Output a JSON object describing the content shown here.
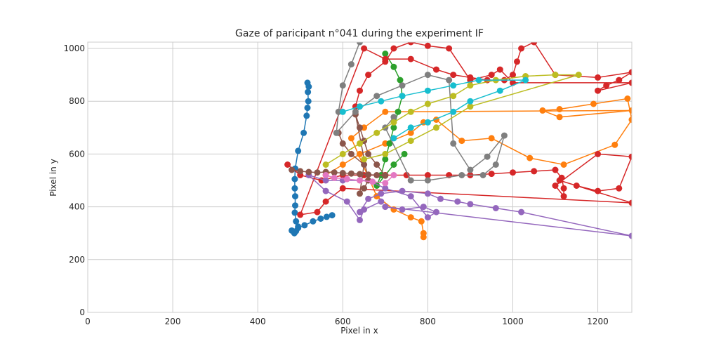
{
  "chart_data": {
    "type": "scatter",
    "title": "Gaze of paricipant n°041 during the experiment IF",
    "xlabel": "Pixel in x",
    "ylabel": "Pixel in y",
    "xlim": [
      0,
      1280
    ],
    "ylim": [
      0,
      1024
    ],
    "xticks": [
      "0",
      "200",
      "400",
      "600",
      "800",
      "1000",
      "1200"
    ],
    "yticks": [
      "0",
      "200",
      "400",
      "600",
      "800",
      "1000"
    ],
    "grid": true,
    "connected": true,
    "series": [
      {
        "color": "#1f77b4",
        "points": [
          [
            517,
            870
          ],
          [
            520,
            855
          ],
          [
            518,
            835
          ],
          [
            519,
            800
          ],
          [
            517,
            775
          ],
          [
            515,
            745
          ],
          [
            508,
            680
          ],
          [
            495,
            612
          ],
          [
            488,
            545
          ],
          [
            487,
            505
          ],
          [
            487,
            470
          ],
          [
            488,
            440
          ],
          [
            488,
            405
          ],
          [
            487,
            378
          ],
          [
            490,
            345
          ],
          [
            495,
            325
          ],
          [
            490,
            308
          ],
          [
            486,
            300
          ],
          [
            480,
            310
          ],
          [
            495,
            320
          ],
          [
            510,
            330
          ],
          [
            530,
            345
          ],
          [
            548,
            355
          ],
          [
            562,
            362
          ],
          [
            575,
            368
          ]
        ]
      },
      {
        "color": "#ff7f0e",
        "points": [
          [
            560,
            520
          ],
          [
            600,
            560
          ],
          [
            640,
            600
          ],
          [
            700,
            640
          ],
          [
            760,
            680
          ],
          [
            790,
            720
          ],
          [
            820,
            730
          ],
          [
            880,
            650
          ],
          [
            950,
            660
          ],
          [
            1040,
            585
          ],
          [
            1120,
            560
          ],
          [
            1240,
            635
          ],
          [
            1280,
            730
          ],
          [
            1270,
            810
          ],
          [
            1190,
            790
          ],
          [
            1110,
            770
          ],
          [
            1070,
            765
          ],
          [
            1110,
            740
          ],
          [
            1280,
            765
          ],
          [
            700,
            760
          ],
          [
            650,
            700
          ],
          [
            620,
            660
          ],
          [
            680,
            440
          ],
          [
            720,
            390
          ],
          [
            760,
            360
          ],
          [
            785,
            345
          ],
          [
            790,
            300
          ],
          [
            790,
            285
          ]
        ]
      },
      {
        "color": "#2ca02c",
        "points": [
          [
            700,
            980
          ],
          [
            720,
            930
          ],
          [
            735,
            880
          ],
          [
            740,
            820
          ],
          [
            730,
            760
          ],
          [
            720,
            700
          ],
          [
            710,
            640
          ],
          [
            700,
            580
          ],
          [
            690,
            520
          ],
          [
            680,
            480
          ],
          [
            700,
            520
          ],
          [
            720,
            560
          ],
          [
            745,
            600
          ]
        ]
      },
      {
        "color": "#d62728",
        "points": [
          [
            470,
            560
          ],
          [
            500,
            520
          ],
          [
            550,
            500
          ],
          [
            600,
            520
          ],
          [
            650,
            520
          ],
          [
            700,
            520
          ],
          [
            750,
            520
          ],
          [
            800,
            520
          ],
          [
            850,
            520
          ],
          [
            900,
            520
          ],
          [
            950,
            525
          ],
          [
            1000,
            530
          ],
          [
            1050,
            535
          ],
          [
            1100,
            540
          ],
          [
            1115,
            510
          ],
          [
            1120,
            470
          ],
          [
            1120,
            440
          ],
          [
            1100,
            480
          ],
          [
            1200,
            600
          ],
          [
            1280,
            590
          ],
          [
            1250,
            470
          ],
          [
            1200,
            460
          ],
          [
            1150,
            480
          ],
          [
            1110,
            500
          ],
          [
            1280,
            415
          ],
          [
            600,
            470
          ],
          [
            560,
            420
          ],
          [
            540,
            380
          ],
          [
            500,
            370
          ],
          [
            650,
            1000
          ],
          [
            700,
            960
          ],
          [
            760,
            960
          ],
          [
            820,
            920
          ],
          [
            860,
            900
          ],
          [
            900,
            890
          ],
          [
            940,
            880
          ],
          [
            980,
            880
          ],
          [
            1000,
            900
          ],
          [
            1010,
            950
          ],
          [
            1020,
            1000
          ],
          [
            1050,
            1024
          ],
          [
            1100,
            900
          ],
          [
            1200,
            890
          ],
          [
            1280,
            910
          ],
          [
            1250,
            880
          ],
          [
            1220,
            860
          ],
          [
            1200,
            840
          ],
          [
            1280,
            870
          ],
          [
            1000,
            870
          ],
          [
            970,
            920
          ],
          [
            950,
            900
          ],
          [
            900,
            880
          ],
          [
            850,
            1000
          ],
          [
            800,
            1010
          ],
          [
            760,
            1024
          ],
          [
            720,
            1000
          ],
          [
            700,
            950
          ],
          [
            660,
            900
          ],
          [
            640,
            840
          ],
          [
            630,
            780
          ]
        ]
      },
      {
        "color": "#9467bd",
        "points": [
          [
            640,
            380
          ],
          [
            660,
            430
          ],
          [
            690,
            450
          ],
          [
            740,
            460
          ],
          [
            800,
            450
          ],
          [
            830,
            430
          ],
          [
            870,
            420
          ],
          [
            900,
            410
          ],
          [
            960,
            395
          ],
          [
            1020,
            380
          ],
          [
            1280,
            290
          ],
          [
            700,
            400
          ],
          [
            740,
            390
          ],
          [
            790,
            400
          ],
          [
            820,
            380
          ],
          [
            800,
            360
          ],
          [
            760,
            440
          ],
          [
            700,
            470
          ],
          [
            660,
            500
          ],
          [
            600,
            500
          ],
          [
            560,
            500
          ],
          [
            520,
            520
          ],
          [
            560,
            460
          ],
          [
            610,
            420
          ],
          [
            640,
            350
          ],
          [
            650,
            390
          ],
          [
            690,
            420
          ]
        ]
      },
      {
        "color": "#8c564b",
        "points": [
          [
            480,
            540
          ],
          [
            500,
            535
          ],
          [
            520,
            532
          ],
          [
            540,
            530
          ],
          [
            560,
            532
          ],
          [
            580,
            530
          ],
          [
            600,
            528
          ],
          [
            620,
            526
          ],
          [
            640,
            524
          ],
          [
            660,
            522
          ],
          [
            680,
            520
          ],
          [
            700,
            518
          ],
          [
            680,
            560
          ],
          [
            660,
            600
          ],
          [
            650,
            650
          ],
          [
            640,
            700
          ],
          [
            630,
            750
          ],
          [
            660,
            500
          ],
          [
            650,
            470
          ],
          [
            640,
            450
          ],
          [
            650,
            560
          ],
          [
            620,
            600
          ],
          [
            600,
            640
          ],
          [
            590,
            680
          ]
        ]
      },
      {
        "color": "#e377c2",
        "points": [
          [
            560,
            520
          ],
          [
            580,
            510
          ],
          [
            610,
            505
          ],
          [
            640,
            500
          ],
          [
            670,
            495
          ],
          [
            700,
            490
          ],
          [
            720,
            520
          ]
        ]
      },
      {
        "color": "#7f7f7f",
        "points": [
          [
            640,
            1024
          ],
          [
            620,
            940
          ],
          [
            600,
            860
          ],
          [
            590,
            760
          ],
          [
            585,
            680
          ],
          [
            630,
            760
          ],
          [
            680,
            820
          ],
          [
            740,
            860
          ],
          [
            800,
            900
          ],
          [
            850,
            880
          ],
          [
            860,
            640
          ],
          [
            900,
            540
          ],
          [
            940,
            590
          ],
          [
            980,
            670
          ],
          [
            960,
            560
          ],
          [
            930,
            520
          ],
          [
            880,
            520
          ],
          [
            800,
            500
          ],
          [
            760,
            500
          ],
          [
            700,
            700
          ],
          [
            720,
            740
          ]
        ]
      },
      {
        "color": "#bcbd22",
        "points": [
          [
            560,
            560
          ],
          [
            600,
            600
          ],
          [
            640,
            640
          ],
          [
            680,
            680
          ],
          [
            720,
            720
          ],
          [
            760,
            760
          ],
          [
            800,
            790
          ],
          [
            860,
            820
          ],
          [
            900,
            860
          ],
          [
            960,
            880
          ],
          [
            1030,
            895
          ],
          [
            1100,
            900
          ],
          [
            1155,
            900
          ],
          [
            900,
            780
          ],
          [
            820,
            700
          ],
          [
            760,
            650
          ],
          [
            700,
            600
          ],
          [
            650,
            580
          ]
        ]
      },
      {
        "color": "#17becf",
        "points": [
          [
            600,
            760
          ],
          [
            640,
            780
          ],
          [
            690,
            800
          ],
          [
            740,
            820
          ],
          [
            800,
            840
          ],
          [
            860,
            860
          ],
          [
            920,
            880
          ],
          [
            1030,
            880
          ],
          [
            970,
            840
          ],
          [
            900,
            800
          ],
          [
            860,
            760
          ],
          [
            800,
            720
          ],
          [
            760,
            700
          ],
          [
            720,
            660
          ]
        ]
      }
    ]
  }
}
